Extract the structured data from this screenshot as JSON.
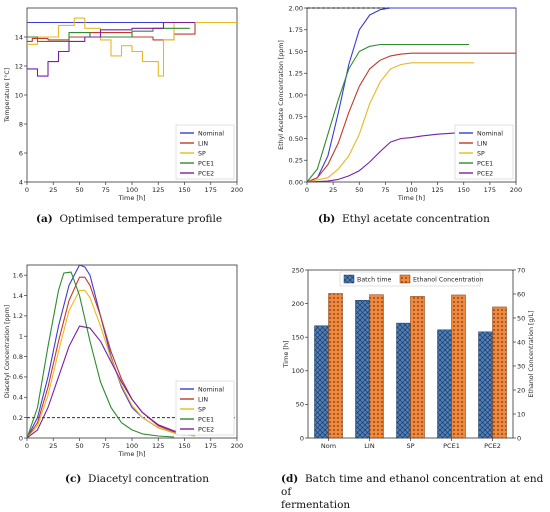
{
  "colors": {
    "Nominal": "#3b3bd6",
    "LIN": "#c0392b",
    "SP": "#e8b923",
    "PCE1": "#2e8b2e",
    "PCE2": "#7a1fa2",
    "batch_bar": "#4f81bd",
    "ethanol_bar": "#f0883e"
  },
  "captions": {
    "a": {
      "tag": "(a)",
      "text": "Optimised temperature profile"
    },
    "b": {
      "tag": "(b)",
      "text": "Ethyl acetate concentration"
    },
    "c": {
      "tag": "(c)",
      "text": "Diacetyl concentration"
    },
    "d": {
      "tag": "(d)",
      "text": "Batch time and ethanol concentration at end of",
      "text2": "fermentation"
    }
  },
  "chart_data": [
    {
      "id": "a",
      "type": "line",
      "xlabel": "Time [h]",
      "ylabel": "Temperature [°C]",
      "xlim": [
        0,
        200
      ],
      "ylim": [
        4,
        16
      ],
      "xticks": [
        0,
        25,
        50,
        75,
        100,
        125,
        150,
        175,
        200
      ],
      "yticks": [
        4,
        6,
        8,
        10,
        12,
        14
      ],
      "legend_position": "bottom-right",
      "series": [
        {
          "name": "Nominal",
          "x": [
            0,
            200
          ],
          "y": [
            15,
            15
          ]
        },
        {
          "name": "LIN",
          "x": [
            0,
            5,
            5,
            20,
            20,
            40,
            40,
            60,
            60,
            100,
            100,
            120,
            120,
            140,
            140,
            160,
            160,
            200
          ],
          "y": [
            13.7,
            13.7,
            13.9,
            13.9,
            13.8,
            13.8,
            14.0,
            14.0,
            14.3,
            14.3,
            14.0,
            14.0,
            13.8,
            13.8,
            14.2,
            14.2,
            15.0,
            15.0
          ]
        },
        {
          "name": "SP",
          "x": [
            0,
            10,
            10,
            30,
            30,
            45,
            45,
            55,
            55,
            70,
            70,
            80,
            80,
            90,
            90,
            100,
            100,
            110,
            110,
            125,
            125,
            130,
            130,
            140,
            140,
            200
          ],
          "y": [
            13.5,
            13.5,
            14.0,
            14.0,
            14.8,
            14.8,
            15.3,
            15.3,
            14.6,
            14.6,
            13.8,
            13.8,
            12.7,
            12.7,
            13.4,
            13.4,
            13.0,
            13.0,
            12.3,
            12.3,
            11.3,
            11.3,
            13.8,
            13.8,
            15.0,
            15.0
          ]
        },
        {
          "name": "PCE1",
          "x": [
            0,
            10,
            10,
            40,
            40,
            60,
            60,
            100,
            100,
            120,
            120,
            155
          ],
          "y": [
            14.0,
            14.0,
            13.7,
            13.7,
            14.3,
            14.3,
            14.0,
            14.0,
            14.4,
            14.4,
            14.6,
            14.6
          ]
        },
        {
          "name": "PCE2",
          "x": [
            0,
            10,
            10,
            20,
            20,
            30,
            30,
            40,
            40,
            55,
            55,
            70,
            70,
            100,
            100,
            130,
            130,
            160
          ],
          "y": [
            11.8,
            11.8,
            11.3,
            11.3,
            12.3,
            12.3,
            13.0,
            13.0,
            13.7,
            13.7,
            14.0,
            14.0,
            14.5,
            14.5,
            14.6,
            14.6,
            15.0,
            15.0
          ]
        }
      ]
    },
    {
      "id": "b",
      "type": "line",
      "xlabel": "Time [h]",
      "ylabel": "Ethyl Acetate Concentration [ppm]",
      "xlim": [
        0,
        200
      ],
      "ylim": [
        0,
        2.0
      ],
      "xticks": [
        0,
        25,
        50,
        75,
        100,
        125,
        150,
        175,
        200
      ],
      "yticks": [
        0.0,
        0.25,
        0.5,
        0.75,
        1.0,
        1.25,
        1.5,
        1.75,
        2.0
      ],
      "ytick_labels": [
        "0.00",
        "0.25",
        "0.50",
        "0.75",
        "1.00",
        "1.25",
        "1.50",
        "1.75",
        "2.00"
      ],
      "reference_line_y": 2.0,
      "legend_position": "bottom-right",
      "series": [
        {
          "name": "Nominal",
          "x": [
            0,
            10,
            20,
            30,
            40,
            50,
            60,
            70,
            80,
            90,
            100,
            125,
            150,
            175,
            200
          ],
          "y": [
            0.0,
            0.05,
            0.3,
            0.8,
            1.35,
            1.75,
            1.92,
            1.98,
            2.0,
            2.0,
            2.0,
            2.0,
            2.0,
            2.0,
            2.0
          ]
        },
        {
          "name": "LIN",
          "x": [
            0,
            10,
            20,
            30,
            40,
            50,
            60,
            70,
            80,
            90,
            100,
            125,
            150,
            175,
            200
          ],
          "y": [
            0.0,
            0.05,
            0.2,
            0.45,
            0.8,
            1.1,
            1.3,
            1.4,
            1.45,
            1.47,
            1.48,
            1.48,
            1.48,
            1.48,
            1.48
          ]
        },
        {
          "name": "SP",
          "x": [
            0,
            20,
            30,
            40,
            50,
            60,
            70,
            80,
            90,
            100,
            125,
            150,
            160
          ],
          "y": [
            0.0,
            0.05,
            0.15,
            0.3,
            0.55,
            0.9,
            1.15,
            1.3,
            1.35,
            1.37,
            1.37,
            1.37,
            1.37
          ]
        },
        {
          "name": "PCE1",
          "x": [
            0,
            10,
            20,
            30,
            40,
            50,
            60,
            70,
            80,
            100,
            125,
            155
          ],
          "y": [
            0.0,
            0.15,
            0.55,
            0.95,
            1.3,
            1.5,
            1.56,
            1.58,
            1.58,
            1.58,
            1.58,
            1.58
          ]
        },
        {
          "name": "PCE2",
          "x": [
            0,
            20,
            30,
            40,
            50,
            60,
            70,
            80,
            90,
            100,
            110,
            125,
            150,
            160
          ],
          "y": [
            0.0,
            0.01,
            0.03,
            0.07,
            0.13,
            0.23,
            0.35,
            0.46,
            0.5,
            0.51,
            0.53,
            0.55,
            0.57,
            0.57
          ]
        }
      ]
    },
    {
      "id": "c",
      "type": "line",
      "xlabel": "Time [h]",
      "ylabel": "Diacetyl Concentration [ppm]",
      "xlim": [
        0,
        200
      ],
      "ylim": [
        0,
        1.7
      ],
      "xticks": [
        0,
        25,
        50,
        75,
        100,
        125,
        150,
        175,
        200
      ],
      "yticks": [
        0.0,
        0.2,
        0.4,
        0.6,
        0.8,
        1.0,
        1.2,
        1.4,
        1.6
      ],
      "reference_line_y": 0.2,
      "legend_position": "bottom-right",
      "series": [
        {
          "name": "Nominal",
          "x": [
            0,
            10,
            20,
            30,
            40,
            50,
            55,
            60,
            70,
            80,
            90,
            100,
            110,
            125,
            140,
            150
          ],
          "y": [
            0.0,
            0.2,
            0.6,
            1.1,
            1.5,
            1.7,
            1.68,
            1.6,
            1.2,
            0.8,
            0.5,
            0.3,
            0.2,
            0.1,
            0.05,
            0.03
          ]
        },
        {
          "name": "LIN",
          "x": [
            0,
            10,
            20,
            30,
            40,
            50,
            55,
            60,
            70,
            80,
            90,
            100,
            110,
            125,
            140,
            160
          ],
          "y": [
            0.0,
            0.15,
            0.5,
            0.95,
            1.35,
            1.58,
            1.58,
            1.5,
            1.2,
            0.85,
            0.58,
            0.38,
            0.25,
            0.12,
            0.06,
            0.02
          ]
        },
        {
          "name": "SP",
          "x": [
            0,
            10,
            20,
            30,
            40,
            50,
            55,
            60,
            70,
            80,
            90,
            100,
            110,
            125,
            140,
            160
          ],
          "y": [
            0.0,
            0.12,
            0.42,
            0.85,
            1.25,
            1.45,
            1.45,
            1.38,
            1.1,
            0.78,
            0.52,
            0.32,
            0.2,
            0.1,
            0.05,
            0.02
          ]
        },
        {
          "name": "PCE1",
          "x": [
            0,
            10,
            20,
            30,
            35,
            42,
            50,
            60,
            70,
            80,
            90,
            100,
            110,
            125,
            140
          ],
          "y": [
            0.0,
            0.3,
            0.9,
            1.45,
            1.62,
            1.63,
            1.4,
            0.95,
            0.55,
            0.3,
            0.15,
            0.08,
            0.04,
            0.02,
            0.01
          ]
        },
        {
          "name": "PCE2",
          "x": [
            0,
            10,
            20,
            30,
            40,
            50,
            60,
            70,
            80,
            90,
            100,
            110,
            125,
            140,
            160
          ],
          "y": [
            0.0,
            0.08,
            0.3,
            0.6,
            0.9,
            1.1,
            1.08,
            0.95,
            0.75,
            0.55,
            0.38,
            0.25,
            0.13,
            0.07,
            0.03
          ]
        }
      ]
    },
    {
      "id": "d",
      "type": "bar",
      "categories": [
        "Nom",
        "LIN",
        "SP",
        "PCE1",
        "PCE2"
      ],
      "ylabel_left": "Time [h]",
      "ylabel_right": "Ethanol Concentration [g/L]",
      "ylim_left": [
        0,
        250
      ],
      "ylim_right": [
        0,
        70
      ],
      "yticks_left": [
        0,
        50,
        100,
        150,
        200,
        250
      ],
      "yticks_right": [
        0,
        10,
        20,
        30,
        40,
        50,
        60,
        70
      ],
      "legend_position": "top",
      "series": [
        {
          "name": "Batch time",
          "axis": "left",
          "values": [
            167,
            205,
            171,
            161,
            158
          ]
        },
        {
          "name": "Ethanol Concentration",
          "axis": "right",
          "values": [
            60.2,
            59.7,
            59.0,
            59.6,
            54.6
          ]
        }
      ]
    }
  ]
}
